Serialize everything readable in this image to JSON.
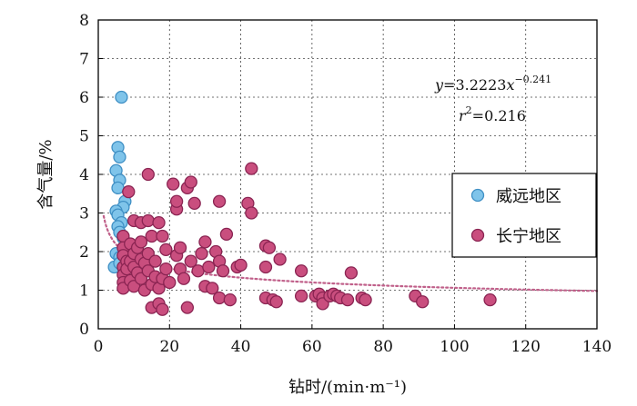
{
  "chart_data": {
    "type": "scatter",
    "xlabel": "钻时/(min·m⁻¹)",
    "ylabel": "含气量/%",
    "xlim": [
      0,
      140
    ],
    "ylim": [
      0,
      8
    ],
    "x_ticks": [
      "0",
      "20",
      "40",
      "60",
      "80",
      "100",
      "120",
      "140"
    ],
    "y_ticks": [
      "0",
      "1",
      "2",
      "3",
      "4",
      "5",
      "6",
      "7",
      "8"
    ],
    "grid": true,
    "legend_position": "right",
    "annotation": {
      "eq_y": "y",
      "eq_mid": "=3.2223",
      "eq_x": "x",
      "eq_exp": "−0.241",
      "r_r": "r",
      "r_exp": "2",
      "r_val": "=0.216"
    },
    "trendline": {
      "type": "power",
      "a": 3.2223,
      "b": -0.241,
      "color": "#c0608a"
    },
    "series": [
      {
        "name": "威远地区",
        "color": "#7fc4ea",
        "edge": "#3f8fc4",
        "points": [
          [
            6.5,
            6.0
          ],
          [
            5.5,
            4.7
          ],
          [
            6.0,
            4.45
          ],
          [
            5.0,
            4.1
          ],
          [
            6.0,
            3.85
          ],
          [
            5.5,
            3.65
          ],
          [
            7.5,
            3.3
          ],
          [
            7.0,
            3.15
          ],
          [
            5.0,
            3.05
          ],
          [
            5.5,
            2.95
          ],
          [
            6.5,
            2.75
          ],
          [
            5.5,
            2.65
          ],
          [
            6.0,
            2.5
          ],
          [
            7.0,
            2.35
          ],
          [
            5.0,
            1.95
          ],
          [
            6.0,
            1.85
          ],
          [
            4.5,
            1.6
          ],
          [
            6.0,
            1.7
          ]
        ]
      },
      {
        "name": "长宁地区",
        "color": "#c94e7e",
        "edge": "#8a2452",
        "points": [
          [
            7,
            2.4
          ],
          [
            7,
            2.1
          ],
          [
            7,
            1.9
          ],
          [
            7,
            1.6
          ],
          [
            7,
            1.4
          ],
          [
            7,
            1.2
          ],
          [
            7,
            1.05
          ],
          [
            8,
            1.75
          ],
          [
            8,
            1.55
          ],
          [
            8.5,
            3.55
          ],
          [
            9,
            2.2
          ],
          [
            9,
            1.75
          ],
          [
            9,
            1.25
          ],
          [
            10,
            2.8
          ],
          [
            10,
            1.95
          ],
          [
            10,
            1.6
          ],
          [
            10,
            1.1
          ],
          [
            11,
            2.1
          ],
          [
            11,
            1.45
          ],
          [
            12,
            2.75
          ],
          [
            12,
            2.25
          ],
          [
            12,
            1.8
          ],
          [
            12,
            1.3
          ],
          [
            13,
            1.7
          ],
          [
            13,
            1.0
          ],
          [
            14,
            2.8
          ],
          [
            14,
            4.0
          ],
          [
            14,
            1.95
          ],
          [
            14,
            1.5
          ],
          [
            15,
            2.4
          ],
          [
            15,
            1.15
          ],
          [
            15,
            0.55
          ],
          [
            16,
            1.75
          ],
          [
            16,
            1.35
          ],
          [
            17,
            2.75
          ],
          [
            17,
            1.05
          ],
          [
            17,
            0.65
          ],
          [
            18,
            2.4
          ],
          [
            18,
            1.3
          ],
          [
            18,
            0.5
          ],
          [
            19,
            2.05
          ],
          [
            19,
            1.55
          ],
          [
            20,
            1.2
          ],
          [
            21,
            3.75
          ],
          [
            22,
            3.1
          ],
          [
            22,
            1.9
          ],
          [
            22,
            3.3
          ],
          [
            23,
            1.55
          ],
          [
            23,
            2.1
          ],
          [
            24,
            1.3
          ],
          [
            25,
            3.65
          ],
          [
            25,
            0.55
          ],
          [
            26,
            3.8
          ],
          [
            26,
            1.75
          ],
          [
            27,
            3.25
          ],
          [
            28,
            1.5
          ],
          [
            29,
            1.95
          ],
          [
            30,
            2.25
          ],
          [
            30,
            1.1
          ],
          [
            31,
            1.6
          ],
          [
            32,
            1.05
          ],
          [
            33,
            2.0
          ],
          [
            34,
            3.3
          ],
          [
            34,
            1.75
          ],
          [
            34,
            0.8
          ],
          [
            35,
            1.5
          ],
          [
            36,
            2.45
          ],
          [
            37,
            0.75
          ],
          [
            39,
            1.6
          ],
          [
            40,
            1.65
          ],
          [
            42,
            3.25
          ],
          [
            43,
            3.0
          ],
          [
            43,
            4.15
          ],
          [
            47,
            2.15
          ],
          [
            47,
            1.6
          ],
          [
            47,
            0.8
          ],
          [
            48,
            2.1
          ],
          [
            49,
            0.75
          ],
          [
            50,
            0.7
          ],
          [
            51,
            1.8
          ],
          [
            57,
            1.5
          ],
          [
            57,
            0.85
          ],
          [
            61,
            0.85
          ],
          [
            62,
            0.9
          ],
          [
            63,
            0.8
          ],
          [
            63,
            0.65
          ],
          [
            65,
            0.85
          ],
          [
            66,
            0.9
          ],
          [
            67,
            0.85
          ],
          [
            68,
            0.8
          ],
          [
            70,
            0.75
          ],
          [
            71,
            1.45
          ],
          [
            74,
            0.8
          ],
          [
            75,
            0.75
          ],
          [
            89,
            0.85
          ],
          [
            91,
            0.7
          ],
          [
            110,
            0.75
          ]
        ]
      }
    ]
  }
}
